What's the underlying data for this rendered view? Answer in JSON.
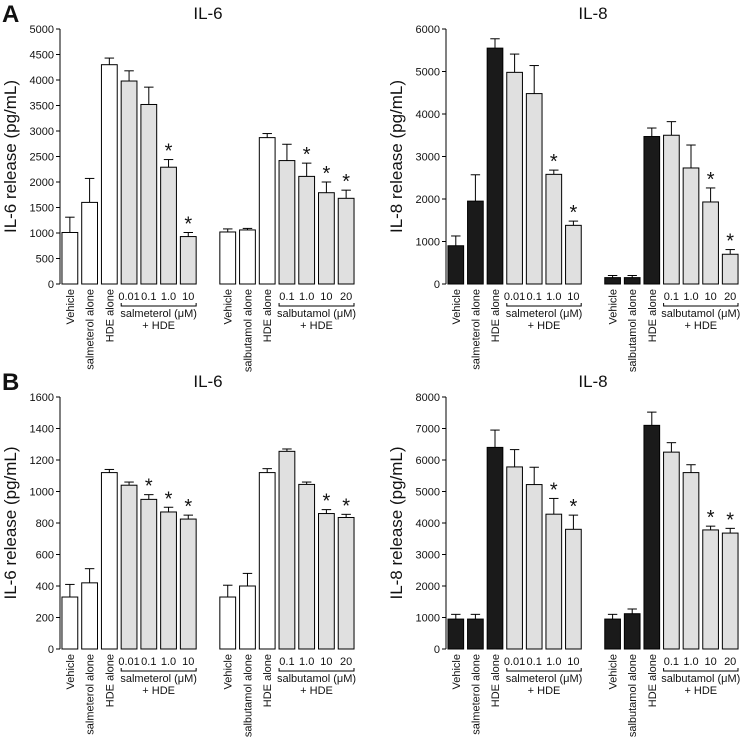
{
  "panel_labels": [
    "A",
    "B"
  ],
  "chart_data": [
    {
      "type": "bar",
      "title": "IL-6",
      "ylabel": "IL-6 release (pg/mL)",
      "ylim": [
        0,
        5000
      ],
      "yticks": [
        0,
        500,
        1000,
        1500,
        2000,
        2500,
        3000,
        3500,
        4000,
        4500,
        5000
      ],
      "control_color": "#ffffff",
      "treatment_color": "#e0e0e0",
      "groups": [
        {
          "controls": {
            "categories": [
              "Vehicle",
              "salmeterol alone",
              "HDE alone"
            ],
            "values": [
              1010,
              1600,
              4300
            ],
            "errors": [
              300,
              470,
              130
            ]
          },
          "treatments": {
            "label": [
              "salmeterol (μM)",
              "+ HDE"
            ],
            "categories": [
              "0.01",
              "0.1",
              "1.0",
              "10"
            ],
            "values": [
              3980,
              3520,
              2290,
              930
            ],
            "errors": [
              200,
              340,
              150,
              80
            ],
            "stars": [
              null,
              null,
              "*",
              "*"
            ]
          }
        },
        {
          "controls": {
            "categories": [
              "Vehicle",
              "salbutamol alone",
              "HDE alone"
            ],
            "values": [
              1020,
              1060,
              2870
            ],
            "errors": [
              60,
              30,
              80
            ]
          },
          "treatments": {
            "label": [
              "salbutamol (μM)",
              "+ HDE"
            ],
            "categories": [
              "0.1",
              "1.0",
              "10",
              "20"
            ],
            "values": [
              2420,
              2110,
              1790,
              1680
            ],
            "errors": [
              320,
              260,
              210,
              160
            ],
            "stars": [
              null,
              "*",
              "*",
              "*"
            ]
          }
        }
      ]
    },
    {
      "type": "bar",
      "title": "IL-8",
      "ylabel": "IL-8 release (pg/mL)",
      "ylim": [
        0,
        6000
      ],
      "yticks": [
        0,
        1000,
        2000,
        3000,
        4000,
        5000,
        6000
      ],
      "control_color": "#1a1a1a",
      "treatment_color": "#e0e0e0",
      "groups": [
        {
          "controls": {
            "categories": [
              "Vehicle",
              "salmeterol alone",
              "HDE alone"
            ],
            "values": [
              900,
              1950,
              5550
            ],
            "errors": [
              230,
              620,
              220
            ]
          },
          "treatments": {
            "label": [
              "salmeterol (μM)",
              "+ HDE"
            ],
            "categories": [
              "0.01",
              "0.1",
              "1.0",
              "10"
            ],
            "values": [
              4980,
              4480,
              2580,
              1380
            ],
            "errors": [
              430,
              660,
              100,
              100
            ],
            "stars": [
              null,
              null,
              "*",
              "*"
            ]
          }
        },
        {
          "controls": {
            "categories": [
              "Vehicle",
              "salbutamol alone",
              "HDE alone"
            ],
            "values": [
              150,
              150,
              3470
            ],
            "errors": [
              50,
              50,
              200
            ]
          },
          "treatments": {
            "label": [
              "salbutamol (μM)",
              "+ HDE"
            ],
            "categories": [
              "0.1",
              "1.0",
              "10",
              "20"
            ],
            "values": [
              3500,
              2730,
              1930,
              700
            ],
            "errors": [
              320,
              540,
              330,
              110
            ],
            "stars": [
              null,
              null,
              "*",
              "*"
            ]
          }
        }
      ]
    },
    {
      "type": "bar",
      "title": "IL-6",
      "ylabel": "IL-6 release (pg/mL)",
      "ylim": [
        0,
        1600
      ],
      "yticks": [
        0,
        200,
        400,
        600,
        800,
        1000,
        1200,
        1400,
        1600
      ],
      "control_color": "#ffffff",
      "treatment_color": "#e0e0e0",
      "groups": [
        {
          "controls": {
            "categories": [
              "Vehicle",
              "salmeterol alone",
              "HDE alone"
            ],
            "values": [
              330,
              420,
              1120
            ],
            "errors": [
              80,
              90,
              20
            ]
          },
          "treatments": {
            "label": [
              "salmeterol (μM)",
              "+ HDE"
            ],
            "categories": [
              "0.01",
              "0.1",
              "1.0",
              "10"
            ],
            "values": [
              1040,
              950,
              870,
              825
            ],
            "errors": [
              20,
              30,
              30,
              25
            ],
            "stars": [
              null,
              "*",
              "*",
              "*"
            ]
          }
        },
        {
          "controls": {
            "categories": [
              "Vehicle",
              "salbutamol alone",
              "HDE alone"
            ],
            "values": [
              330,
              400,
              1120
            ],
            "errors": [
              75,
              80,
              25
            ]
          },
          "treatments": {
            "label": [
              "salbutamol (μM)",
              "+ HDE"
            ],
            "categories": [
              "0.1",
              "1.0",
              "10",
              "20"
            ],
            "values": [
              1255,
              1045,
              860,
              835
            ],
            "errors": [
              15,
              15,
              25,
              20
            ],
            "stars": [
              null,
              null,
              "*",
              "*"
            ]
          }
        }
      ]
    },
    {
      "type": "bar",
      "title": "IL-8",
      "ylabel": "IL-8 release (pg/mL)",
      "ylim": [
        0,
        8000
      ],
      "yticks": [
        0,
        1000,
        2000,
        3000,
        4000,
        5000,
        6000,
        7000,
        8000
      ],
      "control_color": "#1a1a1a",
      "treatment_color": "#e0e0e0",
      "groups": [
        {
          "controls": {
            "categories": [
              "Vehicle",
              "salmeterol alone",
              "HDE alone"
            ],
            "values": [
              950,
              950,
              6400
            ],
            "errors": [
              150,
              150,
              550
            ]
          },
          "treatments": {
            "label": [
              "salmeterol (μM)",
              "+ HDE"
            ],
            "categories": [
              "0.01",
              "0.1",
              "1.0",
              "10"
            ],
            "values": [
              5780,
              5220,
              4280,
              3800
            ],
            "errors": [
              550,
              550,
              500,
              450
            ],
            "stars": [
              null,
              null,
              "*",
              "*"
            ]
          }
        },
        {
          "controls": {
            "categories": [
              "Vehicle",
              "salbutamol alone",
              "HDE alone"
            ],
            "values": [
              950,
              1120,
              7100
            ],
            "errors": [
              150,
              150,
              420
            ]
          },
          "treatments": {
            "label": [
              "salbutamol (μM)",
              "+ HDE"
            ],
            "categories": [
              "0.1",
              "1.0",
              "10",
              "20"
            ],
            "values": [
              6250,
              5600,
              3780,
              3680
            ],
            "errors": [
              300,
              250,
              120,
              150
            ],
            "stars": [
              null,
              null,
              "*",
              "*"
            ]
          }
        }
      ]
    }
  ]
}
